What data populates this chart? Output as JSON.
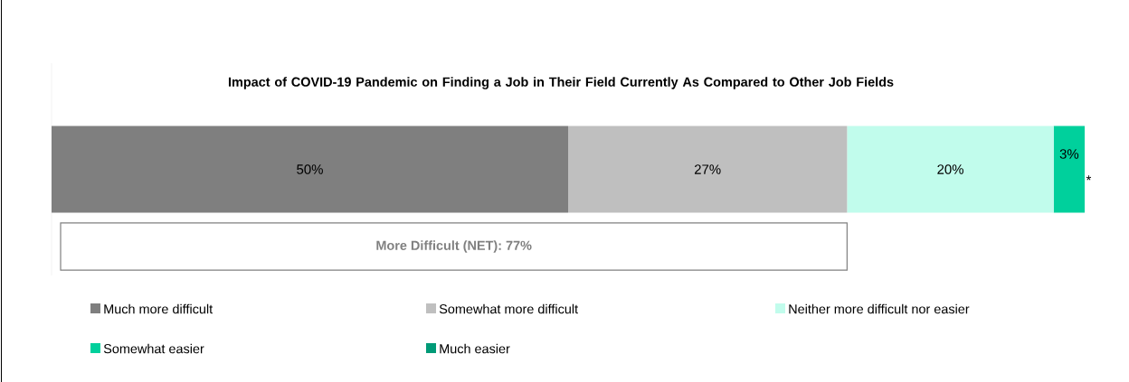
{
  "chart_data": {
    "type": "bar",
    "orientation": "horizontal",
    "stacked": true,
    "title": "Impact of COVID-19 Pandemic on Finding a Job in Their Field Currently As Compared to Other Job Fields",
    "categories": [
      null
    ],
    "xlim": [
      0,
      100
    ],
    "series": [
      {
        "name": "Much more difficult",
        "color": "#7f7f7f",
        "values": [
          50
        ],
        "value_labels": [
          "50%"
        ]
      },
      {
        "name": "Somewhat more difficult",
        "color": "#bfbfbf",
        "values": [
          27
        ],
        "value_labels": [
          "27%"
        ]
      },
      {
        "name": "Neither more difficult nor easier",
        "color": "#c1fcec",
        "values": [
          20
        ],
        "value_labels": [
          "20%"
        ]
      },
      {
        "name": "Somewhat easier",
        "color": "#00d09c",
        "values": [
          3
        ],
        "value_labels": [
          "3%"
        ]
      },
      {
        "name": "Much easier",
        "color": "#009a77",
        "values": [
          0
        ],
        "value_labels": [
          "*"
        ]
      }
    ],
    "annotations": [
      "More Difficult (NET): 77%"
    ],
    "legend": "bottom"
  }
}
